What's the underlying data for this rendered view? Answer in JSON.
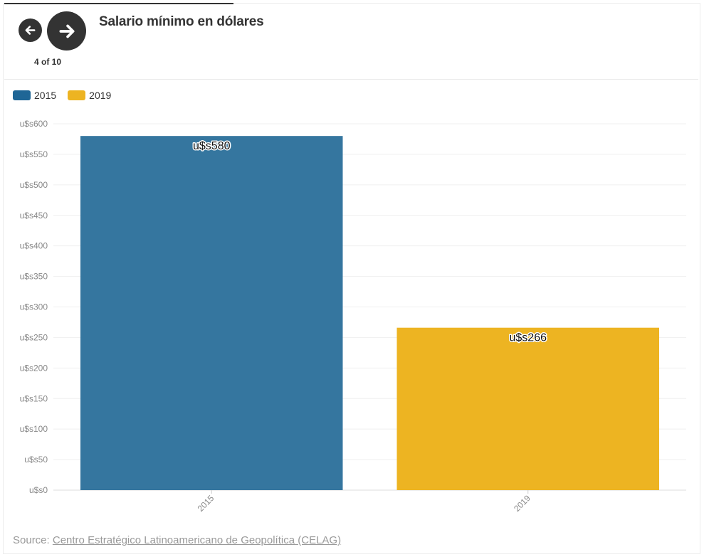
{
  "navigation": {
    "counter": "4 of 10",
    "progress_fraction": 0.33
  },
  "header": {
    "title": "Salario mínimo en dólares"
  },
  "source": {
    "prefix": "Source:",
    "link_text": "Centro Estratégico Latinoamericano de Geopolítica (CELAG)"
  },
  "chart_data": {
    "type": "bar",
    "title": "Salario mínimo en dólares",
    "xlabel": "",
    "ylabel": "",
    "categories": [
      "2015",
      "2019"
    ],
    "values": [
      580,
      266
    ],
    "data_labels": [
      "u$s580",
      "u$s266"
    ],
    "colors": [
      "#35769f",
      "#edb422"
    ],
    "legend": [
      {
        "label": "2015",
        "color": "#1f6696"
      },
      {
        "label": "2019",
        "color": "#edb422"
      }
    ],
    "legend_position": "top-left",
    "ylim": [
      0,
      600
    ],
    "yticks": [
      0,
      50,
      100,
      150,
      200,
      250,
      300,
      350,
      400,
      450,
      500,
      550,
      600
    ],
    "ytick_labels": [
      "u$s0",
      "u$s50",
      "u$s100",
      "u$s150",
      "u$s200",
      "u$s250",
      "u$s300",
      "u$s350",
      "u$s400",
      "u$s450",
      "u$s500",
      "u$s550",
      "u$s600"
    ],
    "grid": true
  }
}
